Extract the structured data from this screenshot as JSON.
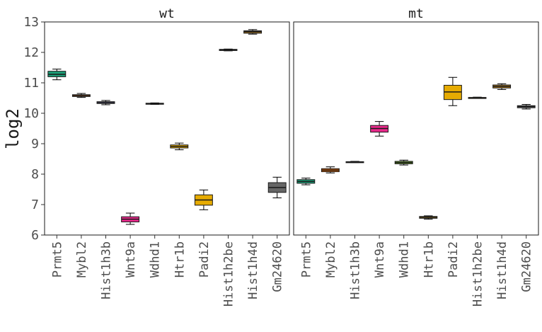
{
  "chart_data": {
    "type": "box",
    "ylabel": "log2",
    "ylim": [
      6,
      13
    ],
    "yticks": [
      6,
      7,
      8,
      9,
      10,
      11,
      12,
      13
    ],
    "categories": [
      "Prmt5",
      "Mybl2",
      "Hist1h3b",
      "Wnt9a",
      "Wdhd1",
      "Htr1b",
      "Padi2",
      "Hist1h2be",
      "Hist1h4d",
      "Gm24620"
    ],
    "colors": [
      "#1b9e77",
      "#d95f02",
      "#7570b3",
      "#e7298a",
      "#66a61e",
      "#e6ab02",
      "#a6761d",
      "#666666"
    ],
    "facets": [
      {
        "title": "wt",
        "boxes": [
          {
            "category": "Prmt5",
            "min": 11.1,
            "q1": 11.2,
            "median": 11.28,
            "q3": 11.38,
            "max": 11.45,
            "fill": "#1b9e77"
          },
          {
            "category": "Mybl2",
            "min": 10.52,
            "q1": 10.55,
            "median": 10.58,
            "q3": 10.61,
            "max": 10.65,
            "fill": "#d95f02"
          },
          {
            "category": "Hist1h3b",
            "min": 10.28,
            "q1": 10.32,
            "median": 10.35,
            "q3": 10.38,
            "max": 10.42,
            "fill": "#7570b3"
          },
          {
            "category": "Wnt9a",
            "min": 6.35,
            "q1": 6.43,
            "median": 6.52,
            "q3": 6.6,
            "max": 6.72,
            "fill": "#e7298a"
          },
          {
            "category": "Wdhd1",
            "min": 10.29,
            "q1": 10.3,
            "median": 10.32,
            "q3": 10.33,
            "max": 10.34,
            "fill": "#66a61e"
          },
          {
            "category": "Htr1b",
            "min": 8.8,
            "q1": 8.86,
            "median": 8.91,
            "q3": 8.96,
            "max": 9.02,
            "fill": "#e6ab02"
          },
          {
            "category": "Padi2",
            "min": 6.83,
            "q1": 6.98,
            "median": 7.15,
            "q3": 7.32,
            "max": 7.48,
            "fill": "#e6ab02"
          },
          {
            "category": "Hist1h2be",
            "min": 12.05,
            "q1": 12.06,
            "median": 12.08,
            "q3": 12.1,
            "max": 12.11,
            "fill": "#e6ab02"
          },
          {
            "category": "Hist1h4d",
            "min": 12.6,
            "q1": 12.63,
            "median": 12.68,
            "q3": 12.71,
            "max": 12.75,
            "fill": "#a6761d"
          },
          {
            "category": "Gm24620",
            "min": 7.22,
            "q1": 7.4,
            "median": 7.56,
            "q3": 7.72,
            "max": 7.9,
            "fill": "#666666"
          }
        ]
      },
      {
        "title": "mt",
        "boxes": [
          {
            "category": "Prmt5",
            "min": 7.65,
            "q1": 7.7,
            "median": 7.76,
            "q3": 7.82,
            "max": 7.87,
            "fill": "#1b9e77"
          },
          {
            "category": "Mybl2",
            "min": 8.04,
            "q1": 8.08,
            "median": 8.13,
            "q3": 8.18,
            "max": 8.24,
            "fill": "#d95f02"
          },
          {
            "category": "Hist1h3b",
            "min": 8.38,
            "q1": 8.39,
            "median": 8.4,
            "q3": 8.41,
            "max": 8.42,
            "fill": "#7570b3"
          },
          {
            "category": "Wnt9a",
            "min": 9.25,
            "q1": 9.38,
            "median": 9.5,
            "q3": 9.6,
            "max": 9.73,
            "fill": "#e7298a"
          },
          {
            "category": "Wdhd1",
            "min": 8.3,
            "q1": 8.34,
            "median": 8.38,
            "q3": 8.42,
            "max": 8.46,
            "fill": "#66a61e"
          },
          {
            "category": "Htr1b",
            "min": 6.52,
            "q1": 6.55,
            "median": 6.58,
            "q3": 6.61,
            "max": 6.63,
            "fill": "#e6ab02"
          },
          {
            "category": "Padi2",
            "min": 10.25,
            "q1": 10.45,
            "median": 10.7,
            "q3": 10.92,
            "max": 11.18,
            "fill": "#e6ab02"
          },
          {
            "category": "Hist1h2be",
            "min": 10.49,
            "q1": 10.5,
            "median": 10.51,
            "q3": 10.52,
            "max": 10.53,
            "fill": "#e6ab02"
          },
          {
            "category": "Hist1h4d",
            "min": 10.78,
            "q1": 10.83,
            "median": 10.88,
            "q3": 10.93,
            "max": 10.97,
            "fill": "#a6761d"
          },
          {
            "category": "Gm24620",
            "min": 10.14,
            "q1": 10.18,
            "median": 10.22,
            "q3": 10.25,
            "max": 10.29,
            "fill": "#666666"
          }
        ]
      }
    ],
    "grid": false,
    "legend": "none"
  }
}
